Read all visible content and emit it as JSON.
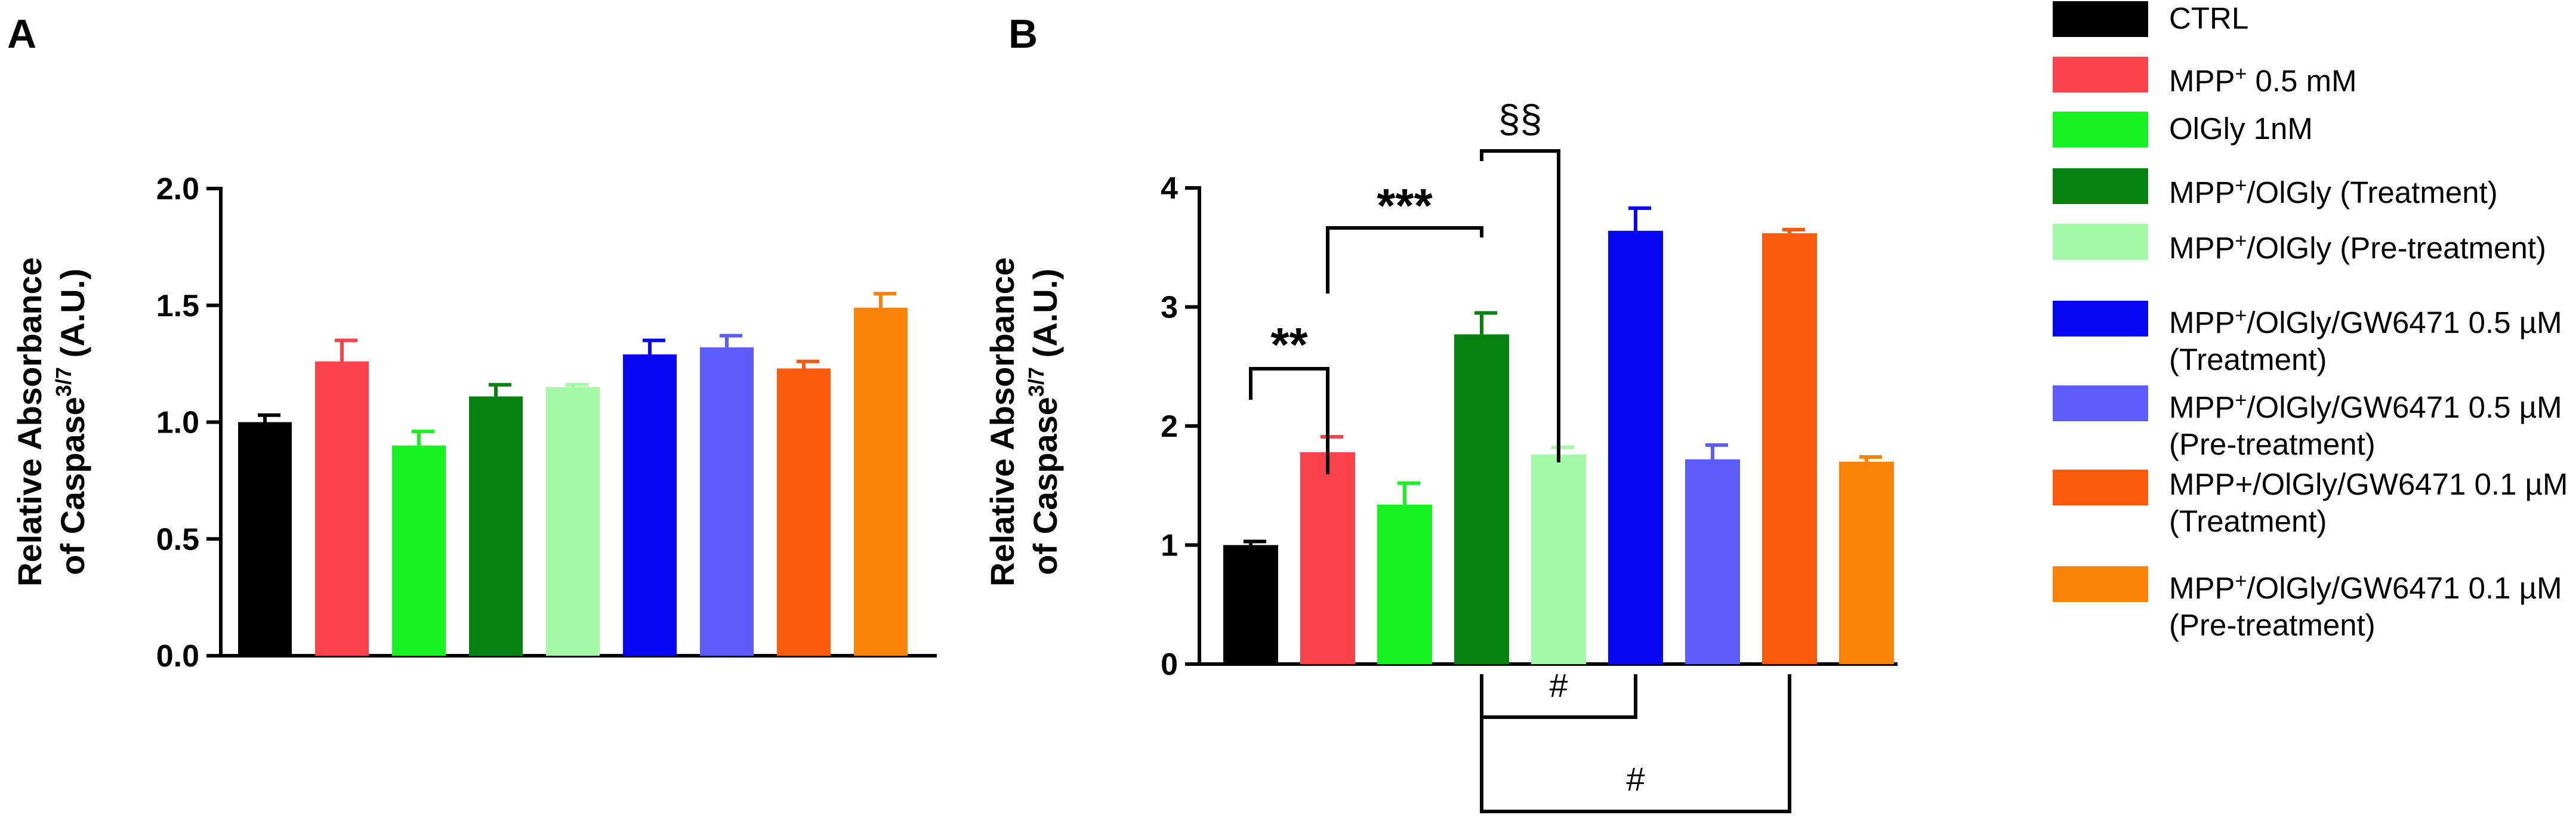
{
  "chart_data": [
    {
      "panel": "A",
      "type": "bar",
      "ylabel_line1": "Relative Absorbance",
      "ylabel_line2": "of Caspase",
      "ylabel_sup": "3/7",
      "ylabel_suffix": " (A.U.)",
      "ylim": [
        0,
        2.0
      ],
      "yticks": [
        0.0,
        0.5,
        1.0,
        1.5,
        2.0
      ],
      "ytick_labels": [
        "0.0",
        "0.5",
        "1.0",
        "1.5",
        "2.0"
      ],
      "categories": [
        "CTRL",
        "MPP+ 0.5 mM",
        "OlGly 1nM",
        "MPP+/OlGly (Treatment)",
        "MPP+/OlGly (Pre-treatment)",
        "MPP+/OlGly/GW6471 0.5 µM (Treatment)",
        "MPP+/OlGly/GW6471 0.5 µM (Pre-treatment)",
        "MPP+/OlGly/GW6471 0.1 µM (Treatment)",
        "MPP+/OlGly/GW6471 0.1 µM (Pre-treatment)"
      ],
      "values": [
        1.0,
        1.26,
        0.9,
        1.11,
        1.15,
        1.29,
        1.32,
        1.23,
        1.49
      ],
      "errors": [
        0.03,
        0.09,
        0.06,
        0.05,
        0.01,
        0.06,
        0.05,
        0.03,
        0.06
      ]
    },
    {
      "panel": "B",
      "type": "bar",
      "ylabel_line1": "Relative Absorbance",
      "ylabel_line2": "of Caspase",
      "ylabel_sup": "3/7",
      "ylabel_suffix": " (A.U.)",
      "ylim": [
        0,
        4
      ],
      "yticks": [
        0,
        1,
        2,
        3,
        4
      ],
      "ytick_labels": [
        "0",
        "1",
        "2",
        "3",
        "4"
      ],
      "categories": [
        "CTRL",
        "MPP+ 0.5 mM",
        "OlGly 1nM",
        "MPP+/OlGly (Treatment)",
        "MPP+/OlGly (Pre-treatment)",
        "MPP+/OlGly/GW6471 0.5 µM (Treatment)",
        "MPP+/OlGly/GW6471 0.5 µM (Pre-treatment)",
        "MPP+/OlGly/GW6471 0.1 µM (Treatment)",
        "MPP+/OlGly/GW6471 0.1 µM (Pre-treatment)"
      ],
      "values": [
        1.0,
        1.78,
        1.34,
        2.77,
        1.76,
        3.64,
        1.72,
        3.62,
        1.7
      ],
      "errors": [
        0.03,
        0.13,
        0.18,
        0.18,
        0.06,
        0.19,
        0.12,
        0.03,
        0.04
      ],
      "annotations": [
        {
          "label": "**",
          "from": 0,
          "to": 1,
          "side": "top"
        },
        {
          "label": "***",
          "from": 1,
          "to": 3,
          "side": "top"
        },
        {
          "label": "§§",
          "from": 3,
          "to": 4,
          "side": "top"
        },
        {
          "label": "#",
          "from": 3,
          "to": 5,
          "side": "bottom"
        },
        {
          "label": "#",
          "from": 3,
          "to": 7,
          "side": "bottom"
        }
      ]
    }
  ],
  "panel_labels": {
    "a": "A",
    "b": "B"
  },
  "colors": [
    "#000000",
    "#f94249",
    "#17f222",
    "#05820f",
    "#a4f9a7",
    "#0707f2",
    "#5c5cfb",
    "#fa5a0b",
    "#fb8307"
  ],
  "legend": [
    {
      "pre": "CTRL",
      "sup": "",
      "post": "",
      "line2": ""
    },
    {
      "pre": "MPP",
      "sup": "+",
      "post": " 0.5 mM",
      "line2": ""
    },
    {
      "pre": "OlGly 1nM",
      "sup": "",
      "post": "",
      "line2": ""
    },
    {
      "pre": "MPP",
      "sup": "+",
      "post": "/OlGly (Treatment)",
      "line2": ""
    },
    {
      "pre": "MPP",
      "sup": "+",
      "post": "/OlGly (Pre-treatment)",
      "line2": ""
    },
    {
      "pre": "MPP",
      "sup": "+",
      "post": "/OlGly/GW6471 0.5 µM",
      "line2": "(Treatment)"
    },
    {
      "pre": "MPP",
      "sup": "+",
      "post": "/OlGly/GW6471 0.5 µM",
      "line2": "(Pre-treatment)"
    },
    {
      "pre": "MPP+/OlGly/GW6471 0.1 µM",
      "sup": "",
      "post": "",
      "line2": "(Treatment)"
    },
    {
      "pre": "MPP",
      "sup": "+",
      "post": "/OlGly/GW6471 0.1 µM",
      "line2": "(Pre-treatment)"
    }
  ]
}
